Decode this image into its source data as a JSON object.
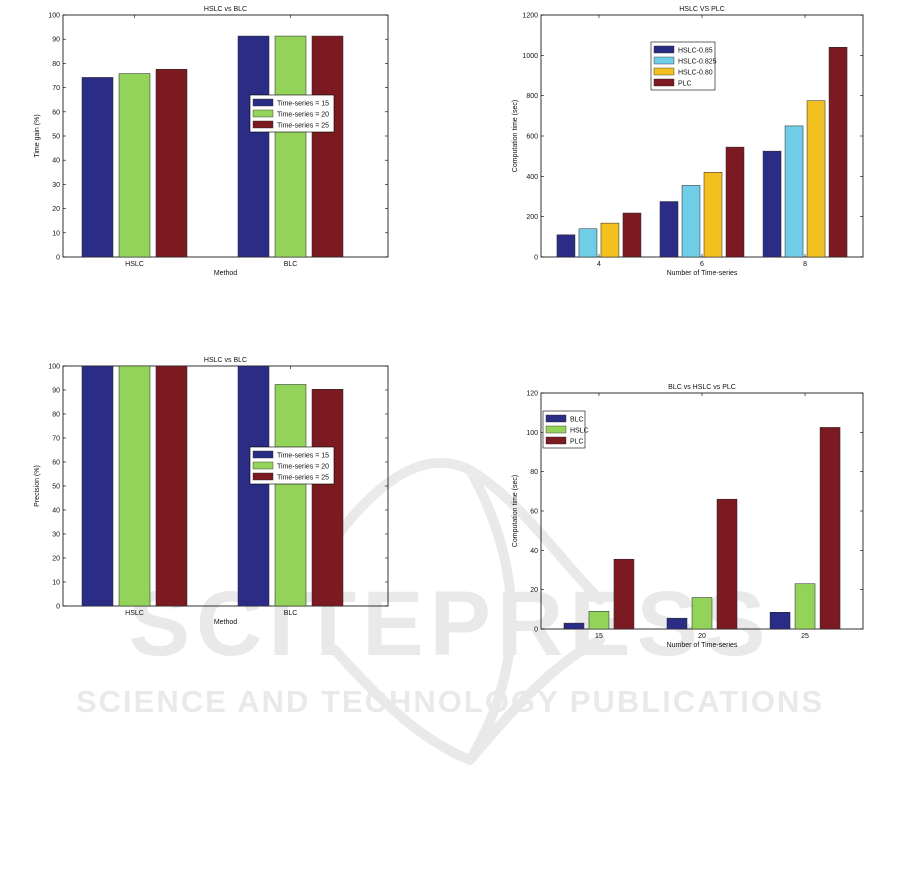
{
  "watermark": {
    "brand": "SCITEPRESS",
    "tagline": "SCIENCE AND TECHNOLOGY PUBLICATIONS"
  },
  "chart_data": [
    {
      "id": "c1",
      "type": "bar",
      "title": "HSLC vs BLC",
      "xlabel": "Method",
      "ylabel": "Time gain (%)",
      "categories": [
        "HSLC",
        "BLC"
      ],
      "ylim": [
        0,
        100
      ],
      "yticks": [
        0,
        10,
        20,
        30,
        40,
        50,
        60,
        70,
        80,
        90,
        100
      ],
      "legend_position": "center-right",
      "series": [
        {
          "name": "Time-series = 15",
          "color": "#2b2c85",
          "values": [
            74.2,
            91.3
          ]
        },
        {
          "name": "Time-series = 20",
          "color": "#93d35a",
          "values": [
            75.8,
            91.3
          ]
        },
        {
          "name": "Time-series = 25",
          "color": "#7c1a22",
          "values": [
            77.6,
            91.3
          ]
        }
      ]
    },
    {
      "id": "c2",
      "type": "bar",
      "title": "HSLC VS PLC",
      "xlabel": "Number of Time-series",
      "ylabel": "Computation time (sec)",
      "categories": [
        "4",
        "6",
        "8"
      ],
      "ylim": [
        0,
        1200
      ],
      "yticks": [
        0,
        200,
        400,
        600,
        800,
        1000,
        1200
      ],
      "legend_position": "top-left",
      "series": [
        {
          "name": "HSLC-0.85",
          "color": "#2b2c85",
          "values": [
            110,
            275,
            525
          ]
        },
        {
          "name": "HSLC-0.825",
          "color": "#6fcde8",
          "values": [
            140,
            355,
            650
          ]
        },
        {
          "name": "HSLC-0.80",
          "color": "#f2c11f",
          "values": [
            168,
            420,
            775
          ]
        },
        {
          "name": "PLC",
          "color": "#7c1a22",
          "values": [
            218,
            545,
            1040
          ]
        }
      ]
    },
    {
      "id": "c3",
      "type": "bar",
      "title": "HSLC vs BLC",
      "xlabel": "Method",
      "ylabel": "Precision (%)",
      "categories": [
        "HSLC",
        "BLC"
      ],
      "ylim": [
        0,
        100
      ],
      "yticks": [
        0,
        10,
        20,
        30,
        40,
        50,
        60,
        70,
        80,
        90,
        100
      ],
      "legend_position": "center-right",
      "series": [
        {
          "name": "Time-series = 15",
          "color": "#2b2c85",
          "values": [
            100,
            100
          ]
        },
        {
          "name": "Time-series = 20",
          "color": "#93d35a",
          "values": [
            100,
            92.3
          ]
        },
        {
          "name": "Time-series = 25",
          "color": "#7c1a22",
          "values": [
            100,
            90.3
          ]
        }
      ]
    },
    {
      "id": "c4",
      "type": "bar",
      "title": "BLC vs HSLC vs PLC",
      "xlabel": "Number of Time-series",
      "ylabel": "Computation time (sec)",
      "categories": [
        "15",
        "20",
        "25"
      ],
      "ylim": [
        0,
        120
      ],
      "yticks": [
        0,
        20,
        40,
        60,
        80,
        100,
        120
      ],
      "legend_position": "top-left",
      "series": [
        {
          "name": "BLC",
          "color": "#2b2c85",
          "values": [
            3,
            5.5,
            8.5
          ]
        },
        {
          "name": "HSLC",
          "color": "#93d35a",
          "values": [
            9,
            16,
            23
          ]
        },
        {
          "name": "PLC",
          "color": "#7c1a22",
          "values": [
            35.5,
            66,
            102.5
          ]
        }
      ]
    }
  ]
}
